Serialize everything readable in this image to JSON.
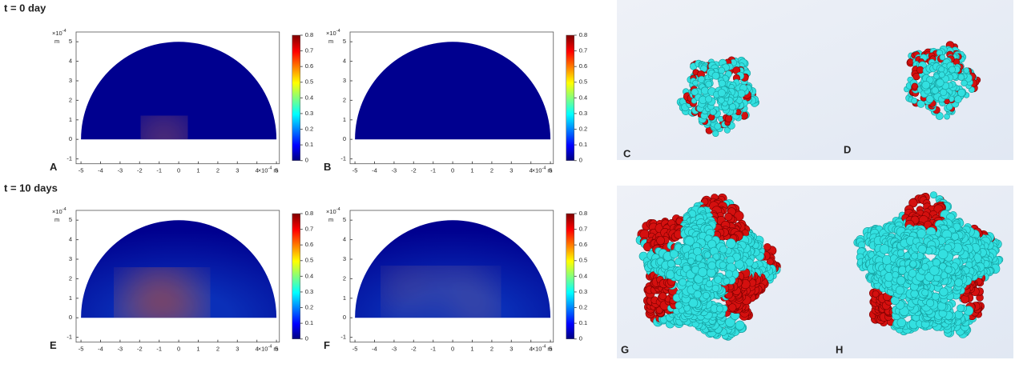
{
  "time_labels": [
    "t = 0 day",
    "t = 10 days"
  ],
  "axes": {
    "xticks": [
      -5,
      -4,
      -3,
      -2,
      -1,
      0,
      1,
      2,
      3,
      4,
      5
    ],
    "yticks": [
      -1,
      0,
      1,
      2,
      3,
      4,
      5
    ],
    "xlim": [
      -5.25,
      5.15
    ],
    "ylim": [
      -1.25,
      5.5
    ],
    "colorbar_ticks": [
      0,
      0.1,
      0.2,
      0.3,
      0.4,
      0.5,
      0.6,
      0.7,
      0.8
    ],
    "colorbar_lim": [
      0,
      0.8
    ],
    "scale_base": "×10",
    "scale_exponent": "-4",
    "unit": "m"
  },
  "plots": [
    {
      "label": "A"
    },
    {
      "label": "B"
    },
    {
      "label": "E"
    },
    {
      "label": "F"
    }
  ],
  "renders": [
    {
      "label": "C"
    },
    {
      "label": "D"
    },
    {
      "label": "G"
    },
    {
      "label": "H"
    }
  ]
}
